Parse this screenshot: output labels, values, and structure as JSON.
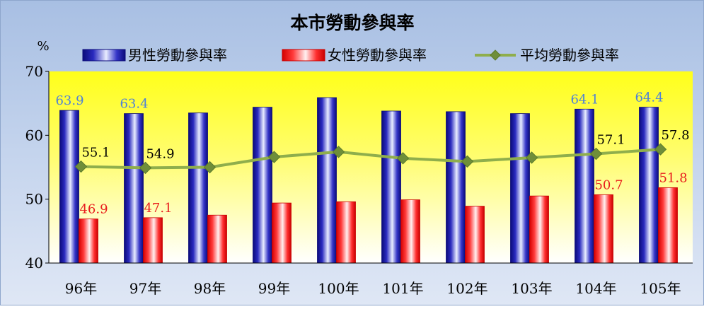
{
  "chart_data": {
    "type": "bar",
    "title": "本市勞動參與率",
    "ylabel": "%",
    "ylim": [
      40,
      70
    ],
    "yticks": [
      40,
      50,
      60,
      70
    ],
    "categories": [
      "96年",
      "97年",
      "98年",
      "99年",
      "100年",
      "101年",
      "102年",
      "103年",
      "104年",
      "105年"
    ],
    "legend_position": "top",
    "grid": false,
    "series": [
      {
        "name": "男性勞動參與率",
        "kind": "bar",
        "color": "#1c1ca8",
        "label_color": "#4f81d8",
        "values": [
          63.9,
          63.4,
          63.5,
          64.4,
          65.9,
          63.8,
          63.7,
          63.4,
          64.1,
          64.4
        ],
        "labels": [
          "63.9",
          "63.4",
          "",
          "",
          "",
          "",
          "",
          "",
          "64.1",
          "64.4"
        ]
      },
      {
        "name": "女性勞動參與率",
        "kind": "bar",
        "color": "#e81e1e",
        "label_color": "#e81e1e",
        "values": [
          46.9,
          47.1,
          47.5,
          49.4,
          49.6,
          49.9,
          48.9,
          50.5,
          50.7,
          51.8
        ],
        "labels": [
          "46.9",
          "47.1",
          "",
          "",
          "",
          "",
          "",
          "",
          "50.7",
          "51.8"
        ]
      },
      {
        "name": "平均勞動參與率",
        "kind": "line",
        "color": "#8fae4c",
        "label_color": "#000000",
        "values": [
          55.1,
          54.9,
          55.0,
          56.6,
          57.4,
          56.4,
          55.9,
          56.5,
          57.1,
          57.8
        ],
        "labels": [
          "55.1",
          "54.9",
          "",
          "",
          "",
          "",
          "",
          "",
          "57.1",
          "57.8"
        ]
      }
    ]
  }
}
